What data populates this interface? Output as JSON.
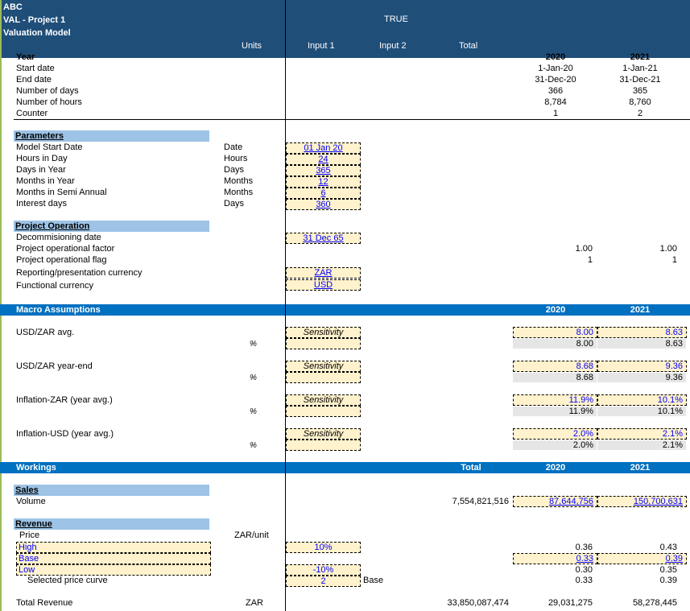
{
  "header": {
    "company": "ABC",
    "project": "VAL - Project 1",
    "model": "Valuation Model",
    "flag": "TRUE",
    "col_units": "Units",
    "col_input1": "Input 1",
    "col_input2": "Input 2",
    "col_total": "Total"
  },
  "timeline": {
    "labels": [
      "Year",
      "Start date",
      "End date",
      "Number of days",
      "Number of hours",
      "Counter"
    ],
    "y2020": [
      "2020",
      "1-Jan-20",
      "31-Dec-20",
      "366",
      "8,784",
      "1"
    ],
    "y2021": [
      "2021",
      "1-Jan-21",
      "31-Dec-21",
      "365",
      "8,760",
      "2"
    ]
  },
  "parameters": {
    "title": "Parameters",
    "rows": [
      {
        "label": "Model Start Date",
        "unit": "Date",
        "value": "01 Jan 20"
      },
      {
        "label": "Hours in Day",
        "unit": "Hours",
        "value": "24"
      },
      {
        "label": "Days in Year",
        "unit": "Days",
        "value": "365"
      },
      {
        "label": "Months in Year",
        "unit": "Months",
        "value": "12"
      },
      {
        "label": "Months in Semi Annual",
        "unit": "Months",
        "value": "6"
      },
      {
        "label": "Interest days",
        "unit": "Days",
        "value": "360"
      }
    ]
  },
  "operation": {
    "title": "Project Operation",
    "decom_label": "Decommisioning date",
    "decom_value": "31 Dec 65",
    "factor_label": "Project operational factor",
    "factor_2020": "1.00",
    "factor_2021": "1.00",
    "flag_label": "Project operational flag",
    "flag_2020": "1",
    "flag_2021": "1",
    "reporting_label": "Reporting/presentation currency",
    "reporting_value": "ZAR",
    "functional_label": "Functional currency",
    "functional_value": "USD"
  },
  "macro": {
    "title": "Macro Assumptions",
    "y2020": "2020",
    "y2021": "2021",
    "sensitivity": "Sensitivity",
    "pct": "%",
    "rows": [
      {
        "label": "USD/ZAR avg.",
        "in2020": "8.00",
        "in2021": "8.63",
        "out2020": "8.00",
        "out2021": "8.63"
      },
      {
        "label": "USD/ZAR year-end",
        "in2020": "8.68",
        "in2021": "9.36",
        "out2020": "8.68",
        "out2021": "9.36"
      },
      {
        "label": "Inflation-ZAR (year avg.)",
        "in2020": "11.9%",
        "in2021": "10.1%",
        "out2020": "11.9%",
        "out2021": "10.1%"
      },
      {
        "label": "Inflation-USD (year avg.)",
        "in2020": "2.0%",
        "in2021": "2.1%",
        "out2020": "2.0%",
        "out2021": "2.1%"
      }
    ]
  },
  "workings": {
    "title": "Workings",
    "total": "Total",
    "y2020": "2020",
    "y2021": "2021",
    "sales_title": "Sales",
    "volume_label": "Volume",
    "volume_total": "7,554,821,516",
    "volume_2020": "87,644,756",
    "volume_2021": "150,700,631",
    "revenue_title": "Revenue",
    "price_label": "Price",
    "price_unit": "ZAR/unit",
    "high_label": "High",
    "high_input": "10%",
    "high_2020": "0.36",
    "high_2021": "0.43",
    "base_label": "Base",
    "base_2020": "0.33",
    "base_2021": "0.39",
    "low_label": "Low",
    "low_input": "-10%",
    "low_2020": "0.30",
    "low_2021": "0.35",
    "selected_label": "Selected price curve",
    "selected_input": "2",
    "selected_name": "Base",
    "selected_2020": "0.33",
    "selected_2021": "0.39",
    "total_rev_label": "Total Revenue",
    "total_rev_unit": "ZAR",
    "total_rev_total": "33,850,087,474",
    "total_rev_2020": "29,031,275",
    "total_rev_2021": "58,278,445"
  }
}
